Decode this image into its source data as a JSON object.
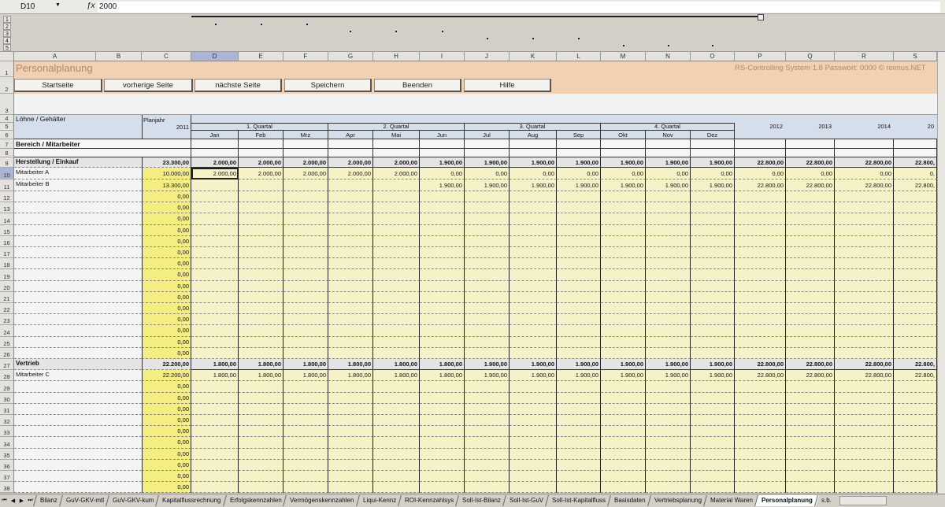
{
  "formula_bar": {
    "cell_ref": "D10",
    "fx": "fx",
    "value": "2000"
  },
  "outline_levels": [
    "1",
    "2",
    "3",
    "4",
    "5"
  ],
  "columns": [
    "A",
    "B",
    "C",
    "D",
    "E",
    "F",
    "G",
    "H",
    "I",
    "J",
    "K",
    "L",
    "M",
    "N",
    "O",
    "P",
    "Q",
    "R",
    "S"
  ],
  "selected_column": "D",
  "selected_row": "10",
  "title": "Personalplanung",
  "system_info": "RS-Controlling System 1.8   Passwort: 0000  © reimus.NET",
  "buttons": [
    "Startseite",
    "vorherige Seite",
    "nächste Seite",
    "Speichern",
    "Beenden",
    "Hilfe"
  ],
  "header": {
    "section_label": "Löhne / Gehälter",
    "planjahr_label": "Planjahr",
    "planjahr": "2011",
    "quarters": [
      "1. Quartal",
      "2. Quartal",
      "3. Quartal",
      "4. Quartal"
    ],
    "months": [
      "Jan",
      "Feb",
      "Mrz",
      "Apr",
      "Mai",
      "Jun",
      "Jul",
      "Aug",
      "Sep",
      "Okt",
      "Nov",
      "Dez"
    ],
    "years": [
      "2012",
      "2013",
      "2014",
      "20"
    ],
    "row7_label": "Bereich / Mitarbeiter"
  },
  "rows": [
    {
      "num": "9",
      "label": "Herstellung / Einkauf",
      "type": "group",
      "plan": "23.300,00",
      "cells": [
        "2.000,00",
        "2.000,00",
        "2.000,00",
        "2.000,00",
        "2.000,00",
        "1.900,00",
        "1.900,00",
        "1.900,00",
        "1.900,00",
        "1.900,00",
        "1.900,00",
        "1.900,00",
        "22.800,00",
        "22.800,00",
        "22.800,00",
        "22.800,"
      ]
    },
    {
      "num": "10",
      "label": "Mitarbeiter A",
      "type": "item",
      "plan": "10.000,00",
      "cells": [
        "2.000,00",
        "2.000,00",
        "2.000,00",
        "2.000,00",
        "2.000,00",
        "0,00",
        "0,00",
        "0,00",
        "0,00",
        "0,00",
        "0,00",
        "0,00",
        "0,00",
        "0,00",
        "0,00",
        "0,"
      ]
    },
    {
      "num": "11",
      "label": "Mitarbeiter B",
      "type": "item",
      "plan": "13.300,00",
      "cells": [
        "",
        "",
        "",
        "",
        "",
        "1.900,00",
        "1.900,00",
        "1.900,00",
        "1.900,00",
        "1.900,00",
        "1.900,00",
        "1.900,00",
        "22.800,00",
        "22.800,00",
        "22.800,00",
        "22.800,"
      ]
    },
    {
      "num": "12",
      "label": "",
      "type": "item",
      "plan": "0,00",
      "cells": []
    },
    {
      "num": "13",
      "label": "",
      "type": "item",
      "plan": "0,00",
      "cells": []
    },
    {
      "num": "14",
      "label": "",
      "type": "item",
      "plan": "0,00",
      "cells": []
    },
    {
      "num": "15",
      "label": "",
      "type": "item",
      "plan": "0,00",
      "cells": []
    },
    {
      "num": "16",
      "label": "",
      "type": "item",
      "plan": "0,00",
      "cells": []
    },
    {
      "num": "17",
      "label": "",
      "type": "item",
      "plan": "0,00",
      "cells": []
    },
    {
      "num": "18",
      "label": "",
      "type": "item",
      "plan": "0,00",
      "cells": []
    },
    {
      "num": "19",
      "label": "",
      "type": "item",
      "plan": "0,00",
      "cells": []
    },
    {
      "num": "20",
      "label": "",
      "type": "item",
      "plan": "0,00",
      "cells": []
    },
    {
      "num": "21",
      "label": "",
      "type": "item",
      "plan": "0,00",
      "cells": []
    },
    {
      "num": "22",
      "label": "",
      "type": "item",
      "plan": "0,00",
      "cells": []
    },
    {
      "num": "23",
      "label": "",
      "type": "item",
      "plan": "0,00",
      "cells": []
    },
    {
      "num": "24",
      "label": "",
      "type": "item",
      "plan": "0,00",
      "cells": []
    },
    {
      "num": "25",
      "label": "",
      "type": "item",
      "plan": "0,00",
      "cells": []
    },
    {
      "num": "26",
      "label": "",
      "type": "item",
      "plan": "0,00",
      "cells": []
    },
    {
      "num": "27",
      "label": "Vertrieb",
      "type": "group",
      "plan": "22.200,00",
      "cells": [
        "1.800,00",
        "1.800,00",
        "1.800,00",
        "1.800,00",
        "1.800,00",
        "1.800,00",
        "1.900,00",
        "1.900,00",
        "1.900,00",
        "1.900,00",
        "1.900,00",
        "1.900,00",
        "22.800,00",
        "22.800,00",
        "22.800,00",
        "22.800,"
      ]
    },
    {
      "num": "28",
      "label": "Mitarbeiter C",
      "type": "item",
      "plan": "22.200,00",
      "cells": [
        "1.800,00",
        "1.800,00",
        "1.800,00",
        "1.800,00",
        "1.800,00",
        "1.800,00",
        "1.900,00",
        "1.900,00",
        "1.900,00",
        "1.900,00",
        "1.900,00",
        "1.900,00",
        "22.800,00",
        "22.800,00",
        "22.800,00",
        "22.800,"
      ]
    },
    {
      "num": "29",
      "label": "",
      "type": "item",
      "plan": "0,00",
      "cells": []
    },
    {
      "num": "30",
      "label": "",
      "type": "item",
      "plan": "0,00",
      "cells": []
    },
    {
      "num": "31",
      "label": "",
      "type": "item",
      "plan": "0,00",
      "cells": []
    },
    {
      "num": "32",
      "label": "",
      "type": "item",
      "plan": "0,00",
      "cells": []
    },
    {
      "num": "33",
      "label": "",
      "type": "item",
      "plan": "0,00",
      "cells": []
    },
    {
      "num": "34",
      "label": "",
      "type": "item",
      "plan": "0,00",
      "cells": []
    },
    {
      "num": "35",
      "label": "",
      "type": "item",
      "plan": "0,00",
      "cells": []
    },
    {
      "num": "36",
      "label": "",
      "type": "item",
      "plan": "0,00",
      "cells": []
    },
    {
      "num": "37",
      "label": "",
      "type": "item",
      "plan": "0,00",
      "cells": []
    },
    {
      "num": "38",
      "label": "",
      "type": "item",
      "plan": "0,00",
      "cells": []
    }
  ],
  "sheet_tabs": [
    "Bilanz",
    "GuV-GKV-mtl",
    "GuV-GKV-kum",
    "Kapitalflussrechnung",
    "Erfolgskennzahlen",
    "Vermögenskennzahlen",
    "Liqui-Kennz",
    "ROI-Kennzahlsys",
    "Soll-Ist-Bilanz",
    "Soll-Ist-GuV",
    "Soll-Ist-Kapitalfluss",
    "Basisdaten",
    "Vertriebsplanung",
    "Material Waren",
    "Personalplanung",
    "s.b."
  ],
  "active_tab": "Personalplanung",
  "colors": {
    "title_band": "#f2d1b2",
    "title_text": "#b0896a",
    "header_blue": "#d5deeb",
    "data_yellow": "#f6f2c8",
    "plan_yellow": "#f4ee80",
    "group_gray": "#e4e4e4",
    "selection": "#aab5d6"
  }
}
